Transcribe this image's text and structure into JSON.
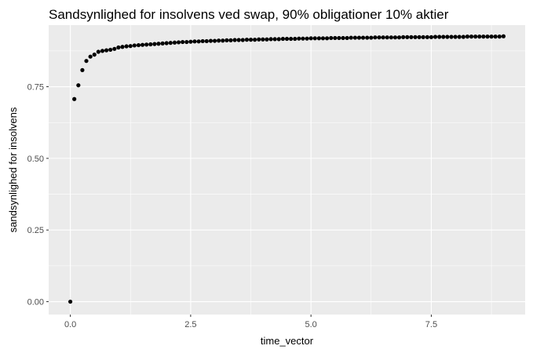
{
  "chart_data": {
    "type": "scatter",
    "title": "Sandsynlighed for insolvens ved swap, 90% obligationer 10% aktier",
    "xlabel": "time_vector",
    "ylabel": "sandsynlighed for insolvens",
    "xlim": [
      -0.45,
      9.45
    ],
    "ylim": [
      -0.045,
      0.965
    ],
    "x_ticks": [
      0,
      2.5,
      5,
      7.5
    ],
    "x_tick_labels": [
      "0.0",
      "2.5",
      "5.0",
      "7.5"
    ],
    "y_ticks": [
      0,
      0.25,
      0.5,
      0.75
    ],
    "y_tick_labels": [
      "0.00",
      "0.25",
      "0.50",
      "0.75"
    ],
    "grid": true,
    "legend": "none",
    "point_color": "#000000",
    "panel_color": "#ebebeb",
    "series": [
      {
        "x": [
          0,
          0.083,
          0.167,
          0.25,
          0.333,
          0.417,
          0.5,
          0.583,
          0.667,
          0.75,
          0.833,
          0.917,
          1.0,
          1.083,
          1.167,
          1.25,
          1.333,
          1.417,
          1.5,
          1.583,
          1.667,
          1.75,
          1.833,
          1.917,
          2.0,
          2.083,
          2.167,
          2.25,
          2.333,
          2.417,
          2.5,
          2.583,
          2.667,
          2.75,
          2.833,
          2.917,
          3.0,
          3.083,
          3.167,
          3.25,
          3.333,
          3.417,
          3.5,
          3.583,
          3.667,
          3.75,
          3.833,
          3.917,
          4.0,
          4.083,
          4.167,
          4.25,
          4.333,
          4.417,
          4.5,
          4.583,
          4.667,
          4.75,
          4.833,
          4.917,
          5.0,
          5.083,
          5.167,
          5.25,
          5.333,
          5.417,
          5.5,
          5.583,
          5.667,
          5.75,
          5.833,
          5.917,
          6.0,
          6.083,
          6.167,
          6.25,
          6.333,
          6.417,
          6.5,
          6.583,
          6.667,
          6.75,
          6.833,
          6.917,
          7.0,
          7.083,
          7.167,
          7.25,
          7.333,
          7.417,
          7.5,
          7.583,
          7.667,
          7.75,
          7.833,
          7.917,
          8.0,
          8.083,
          8.167,
          8.25,
          8.333,
          8.417,
          8.5,
          8.583,
          8.667,
          8.75,
          8.833,
          8.917,
          9.0
        ],
        "y": [
          0,
          0.707,
          0.755,
          0.808,
          0.84,
          0.855,
          0.862,
          0.872,
          0.875,
          0.877,
          0.879,
          0.882,
          0.887,
          0.889,
          0.891,
          0.892,
          0.894,
          0.895,
          0.896,
          0.897,
          0.898,
          0.899,
          0.9,
          0.901,
          0.902,
          0.903,
          0.904,
          0.905,
          0.906,
          0.906,
          0.907,
          0.908,
          0.908,
          0.909,
          0.909,
          0.91,
          0.91,
          0.911,
          0.911,
          0.912,
          0.912,
          0.913,
          0.913,
          0.913,
          0.914,
          0.914,
          0.914,
          0.915,
          0.915,
          0.915,
          0.916,
          0.916,
          0.916,
          0.917,
          0.917,
          0.917,
          0.917,
          0.918,
          0.918,
          0.918,
          0.919,
          0.919,
          0.919,
          0.919,
          0.919,
          0.92,
          0.92,
          0.92,
          0.92,
          0.92,
          0.921,
          0.921,
          0.921,
          0.921,
          0.921,
          0.921,
          0.922,
          0.922,
          0.922,
          0.922,
          0.922,
          0.922,
          0.922,
          0.923,
          0.923,
          0.923,
          0.923,
          0.923,
          0.923,
          0.923,
          0.923,
          0.924,
          0.924,
          0.924,
          0.924,
          0.924,
          0.924,
          0.924,
          0.924,
          0.925,
          0.925,
          0.925,
          0.925,
          0.925,
          0.925,
          0.925,
          0.925,
          0.925,
          0.926
        ]
      }
    ]
  }
}
